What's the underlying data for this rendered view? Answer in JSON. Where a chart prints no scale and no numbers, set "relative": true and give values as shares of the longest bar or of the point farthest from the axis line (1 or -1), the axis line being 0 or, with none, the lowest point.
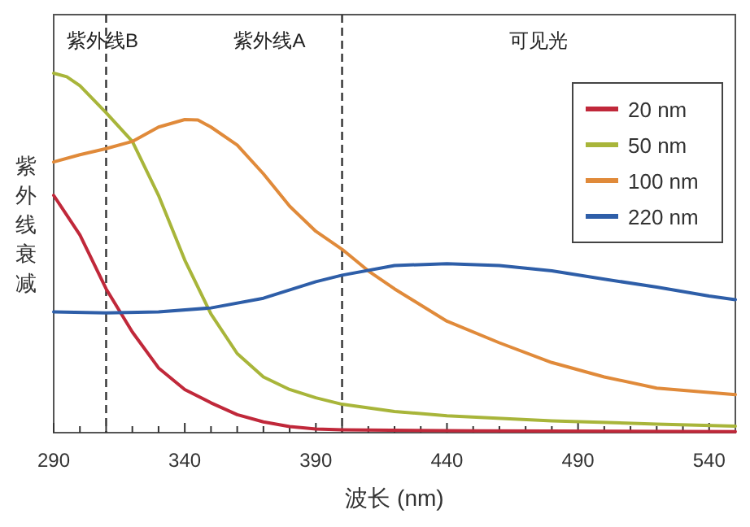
{
  "chart_data": {
    "type": "line",
    "relative": true,
    "xlabel": "波长 (nm)",
    "ylabel": "紫外线衰减",
    "xlim": [
      290,
      550
    ],
    "xticks": [
      290,
      {
        "value": 300,
        "label": null
      },
      {
        "value": 310,
        "label": null
      },
      {
        "value": 320,
        "label": null
      },
      {
        "value": 330,
        "label": null
      },
      340,
      {
        "value": 350,
        "label": null
      },
      {
        "value": 360,
        "label": null
      },
      {
        "value": 370,
        "label": null
      },
      {
        "value": 380,
        "label": null
      },
      390,
      {
        "value": 400,
        "label": null
      },
      {
        "value": 410,
        "label": null
      },
      {
        "value": 420,
        "label": null
      },
      {
        "value": 430,
        "label": null
      },
      440,
      {
        "value": 450,
        "label": null
      },
      {
        "value": 460,
        "label": null
      },
      {
        "value": 470,
        "label": null
      },
      {
        "value": 480,
        "label": null
      },
      490,
      {
        "value": 500,
        "label": null
      },
      {
        "value": 510,
        "label": null
      },
      {
        "value": 520,
        "label": null
      },
      {
        "value": 530,
        "label": null
      },
      540
    ],
    "legend": "top right",
    "grid": false,
    "marker": "none",
    "line_style": "solid",
    "ref_lines": [
      {
        "axis": "x",
        "value": 310,
        "color": "#333333",
        "line_style": "dashed"
      },
      {
        "axis": "x",
        "value": 400,
        "color": "#333333",
        "line_style": "dashed"
      }
    ],
    "annotations": [
      "紫外线B",
      "紫外线A",
      "可见光"
    ],
    "series": [
      {
        "name": "20 nm",
        "color": "#c0283a",
        "x": [
          290,
          300,
          310,
          320,
          330,
          340,
          350,
          360,
          370,
          380,
          390,
          400,
          450,
          550
        ],
        "values": [
          0.66,
          0.55,
          0.4,
          0.28,
          0.18,
          0.12,
          0.083,
          0.05,
          0.03,
          0.017,
          0.01,
          0.008,
          0.005,
          0.003
        ]
      },
      {
        "name": "50 nm",
        "color": "#a8b53a",
        "x": [
          290,
          295,
          300,
          310,
          320,
          330,
          340,
          350,
          360,
          370,
          380,
          390,
          400,
          420,
          440,
          480,
          520,
          550
        ],
        "values": [
          1,
          0.99,
          0.965,
          0.89,
          0.81,
          0.66,
          0.48,
          0.33,
          0.22,
          0.155,
          0.12,
          0.097,
          0.079,
          0.059,
          0.047,
          0.033,
          0.024,
          0.018
        ]
      },
      {
        "name": "100 nm",
        "color": "#e08a3a",
        "x": [
          290,
          300,
          310,
          320,
          330,
          340,
          345,
          350,
          360,
          370,
          380,
          390,
          400,
          410,
          420,
          440,
          460,
          480,
          500,
          520,
          550
        ],
        "values": [
          0.753,
          0.773,
          0.79,
          0.81,
          0.85,
          0.871,
          0.87,
          0.85,
          0.8,
          0.72,
          0.63,
          0.56,
          0.51,
          0.45,
          0.4,
          0.31,
          0.25,
          0.195,
          0.155,
          0.124,
          0.106
        ]
      },
      {
        "name": "220 nm",
        "color": "#2e5ea8",
        "x": [
          290,
          310,
          330,
          350,
          370,
          390,
          400,
          420,
          440,
          460,
          480,
          500,
          520,
          540,
          550
        ],
        "values": [
          0.336,
          0.333,
          0.336,
          0.347,
          0.374,
          0.42,
          0.438,
          0.465,
          0.47,
          0.465,
          0.45,
          0.427,
          0.405,
          0.38,
          0.37
        ]
      }
    ]
  }
}
